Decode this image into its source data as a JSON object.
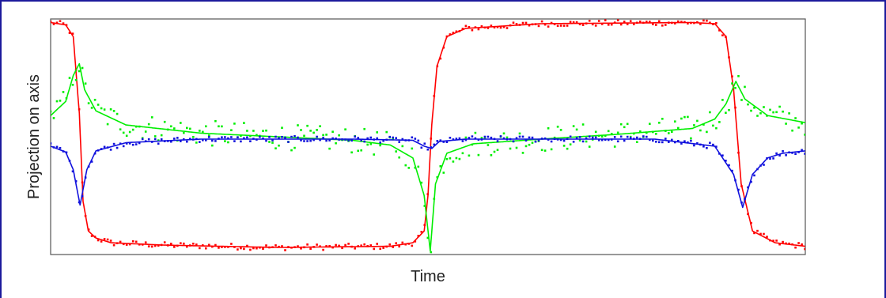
{
  "chart_data": {
    "type": "scatter",
    "title": "",
    "xlabel": "Time",
    "ylabel": "Projection on axis",
    "grid": false,
    "legend": "none",
    "xlim": [
      0,
      100
    ],
    "ylim": [
      -1,
      1
    ],
    "series": [
      {
        "color": "#ff0000",
        "kind": "fit-line-with-samples",
        "x": [
          0,
          2,
          3,
          3.8,
          4.3,
          5,
          6,
          8,
          15,
          30,
          45,
          48,
          49.5,
          50,
          50.5,
          51.2,
          52.5,
          55,
          65,
          85,
          88,
          89.5,
          90.5,
          91.5,
          93,
          96,
          100
        ],
        "values": [
          0.97,
          0.95,
          0.85,
          0.2,
          -0.55,
          -0.8,
          -0.86,
          -0.9,
          -0.92,
          -0.94,
          -0.93,
          -0.9,
          -0.8,
          -0.5,
          0.1,
          0.6,
          0.85,
          0.92,
          0.96,
          0.97,
          0.96,
          0.85,
          0.4,
          -0.4,
          -0.8,
          -0.9,
          -0.93
        ]
      },
      {
        "color": "#00ee00",
        "kind": "fit-line-with-samples",
        "x": [
          0,
          2,
          3,
          3.8,
          4.5,
          6,
          10,
          20,
          30,
          40,
          45,
          48,
          49.5,
          50.3,
          51,
          52.5,
          56,
          65,
          75,
          85,
          88,
          89.5,
          90.8,
          92,
          95,
          100
        ],
        "values": [
          0.18,
          0.3,
          0.52,
          0.62,
          0.4,
          0.22,
          0.1,
          0.03,
          0.0,
          -0.03,
          -0.07,
          -0.18,
          -0.5,
          -0.97,
          -0.4,
          -0.14,
          -0.06,
          -0.02,
          0.02,
          0.07,
          0.15,
          0.28,
          0.47,
          0.32,
          0.18,
          0.12
        ]
      },
      {
        "color": "#1111dd",
        "kind": "fit-line-with-samples",
        "x": [
          0,
          2,
          3,
          3.9,
          4.8,
          6,
          10,
          20,
          40,
          48,
          49.5,
          50.5,
          51.5,
          55,
          65,
          80,
          88,
          90.5,
          91.7,
          93,
          95,
          97,
          100
        ],
        "values": [
          -0.08,
          -0.13,
          -0.28,
          -0.58,
          -0.28,
          -0.12,
          -0.05,
          -0.02,
          -0.02,
          -0.03,
          -0.08,
          -0.1,
          -0.04,
          -0.02,
          -0.02,
          -0.02,
          -0.08,
          -0.32,
          -0.6,
          -0.32,
          -0.18,
          -0.14,
          -0.12
        ]
      }
    ]
  }
}
